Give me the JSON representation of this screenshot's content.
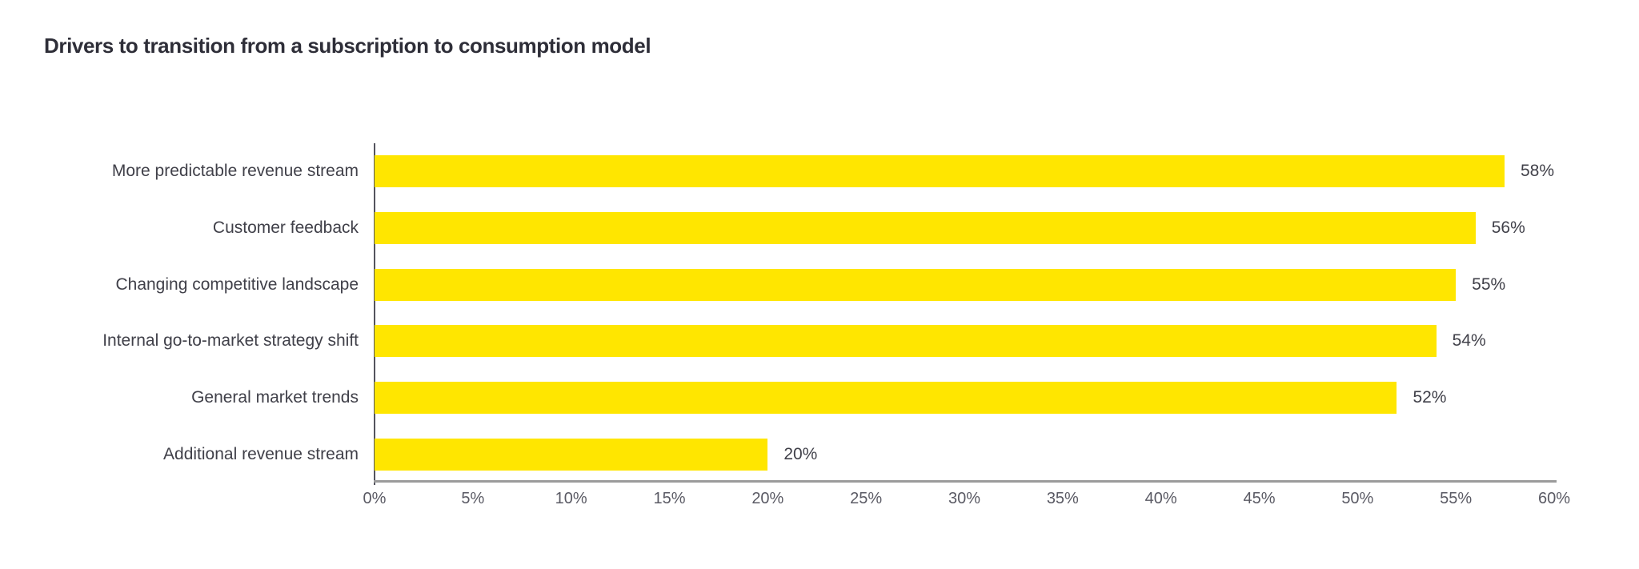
{
  "chart_data": {
    "type": "bar",
    "orientation": "horizontal",
    "title": "Drivers to transition from a subscription to consumption model",
    "categories": [
      "More predictable revenue stream",
      "Customer feedback",
      "Changing competitive landscape",
      "Internal go-to-market strategy shift",
      "General market trends",
      "Additional revenue stream"
    ],
    "values": [
      58,
      56,
      55,
      54,
      52,
      20
    ],
    "value_labels": [
      "58%",
      "56%",
      "55%",
      "54%",
      "52%",
      "20%"
    ],
    "xlabel": "",
    "ylabel": "",
    "xlim": [
      0,
      60
    ],
    "x_tick_step": 5,
    "x_tick_labels": [
      "0%",
      "5%",
      "10%",
      "15%",
      "20%",
      "25%",
      "30%",
      "35%",
      "40%",
      "45%",
      "50%",
      "55%",
      "60%"
    ],
    "grid": false,
    "legend": false,
    "colors": {
      "background": "#ffffff",
      "bar": "#ffe600",
      "title": "#2e2e38",
      "category_label": "#404049",
      "value_label": "#404049",
      "tick_label": "#5a5a64",
      "y_axis_line": "#54545e",
      "x_axis_line": "#9b9b9b"
    }
  }
}
